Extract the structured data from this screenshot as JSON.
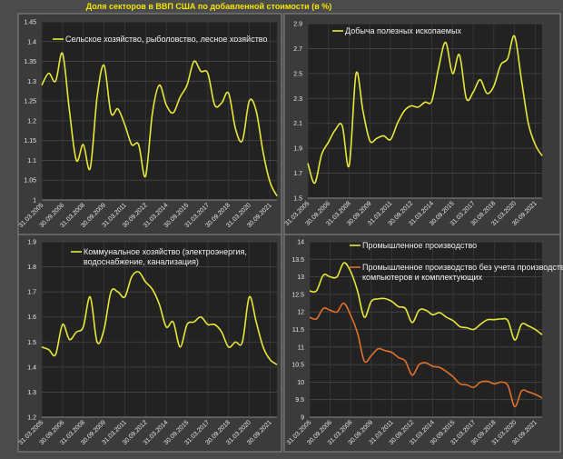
{
  "title": "Доля секторов в ВВП США по добавленной стоимости (в %)",
  "colors": {
    "background": "#4b4b4b",
    "panel": "#3b3b3b",
    "plot": "#222222",
    "grid": "#444444",
    "yellow": "#e8e83a",
    "orange": "#e0702a"
  },
  "chart_data": [
    {
      "type": "line",
      "legend_placement": "top-left",
      "grid": true,
      "ylim": [
        1,
        1.45
      ],
      "yticks": [
        "1",
        "1.05",
        "1.1",
        "1.15",
        "1.2",
        "1.25",
        "1.3",
        "1.35",
        "1.4",
        "1.45"
      ],
      "xtick_labels": [
        "31.03.2005",
        "30.09.2006",
        "31.03.2008",
        "30.09.2009",
        "31.03.2011",
        "30.09.2012",
        "31.03.2014",
        "30.09.2015",
        "31.03.2017",
        "30.09.2018",
        "31.03.2020",
        "30.09.2021"
      ],
      "x": [
        "31.03.2005",
        "30.09.2005",
        "31.03.2006",
        "30.09.2006",
        "31.03.2007",
        "30.09.2007",
        "31.03.2008",
        "30.09.2008",
        "31.03.2009",
        "30.09.2009",
        "31.03.2010",
        "30.09.2010",
        "31.03.2011",
        "30.09.2011",
        "31.03.2012",
        "30.09.2012",
        "31.03.2013",
        "30.09.2013",
        "31.03.2014",
        "30.09.2014",
        "31.03.2015",
        "30.09.2015",
        "31.03.2016",
        "30.09.2016",
        "31.03.2017",
        "30.09.2017",
        "31.03.2018",
        "30.09.2018",
        "31.03.2019",
        "30.09.2019",
        "31.03.2020",
        "30.09.2020",
        "31.03.2021",
        "30.09.2021",
        "31.03.2022"
      ],
      "series": [
        {
          "name": "Сельское хозяйство, рыболовство, лесное хозяйство",
          "color": "#e8e83a",
          "values": [
            1.29,
            1.32,
            1.3,
            1.37,
            1.225,
            1.1,
            1.14,
            1.08,
            1.26,
            1.34,
            1.22,
            1.23,
            1.19,
            1.14,
            1.14,
            1.06,
            1.22,
            1.29,
            1.24,
            1.22,
            1.26,
            1.29,
            1.35,
            1.325,
            1.32,
            1.24,
            1.245,
            1.27,
            1.18,
            1.15,
            1.25,
            1.225,
            1.12,
            1.045,
            1.01
          ]
        }
      ]
    },
    {
      "type": "line",
      "legend_placement": "top-left",
      "grid": true,
      "ylim": [
        1.5,
        2.9
      ],
      "yticks": [
        "1.5",
        "1.7",
        "1.9",
        "2.1",
        "2.3",
        "2.5",
        "2.7",
        "2.9"
      ],
      "xtick_labels": [
        "31.03.2005",
        "30.09.2006",
        "31.03.2008",
        "30.09.2009",
        "31.03.2011",
        "30.09.2012",
        "31.03.2014",
        "30.09.2015",
        "31.03.2017",
        "30.09.2018",
        "31.03.2020",
        "30.09.2021"
      ],
      "x": [
        "31.03.2005",
        "30.09.2005",
        "31.03.2006",
        "30.09.2006",
        "31.03.2007",
        "30.09.2007",
        "31.03.2008",
        "30.09.2008",
        "31.03.2009",
        "30.09.2009",
        "31.03.2010",
        "30.09.2010",
        "31.03.2011",
        "30.09.2011",
        "31.03.2012",
        "30.09.2012",
        "31.03.2013",
        "30.09.2013",
        "31.03.2014",
        "30.09.2014",
        "31.03.2015",
        "30.09.2015",
        "31.03.2016",
        "30.09.2016",
        "31.03.2017",
        "30.09.2017",
        "31.03.2018",
        "30.09.2018",
        "31.03.2019",
        "30.09.2019",
        "31.03.2020",
        "30.09.2020",
        "31.03.2021",
        "30.09.2021",
        "31.03.2022"
      ],
      "series": [
        {
          "name": "Добыча полезных ископаемых",
          "color": "#e8e83a",
          "values": [
            1.78,
            1.62,
            1.85,
            1.95,
            2.05,
            2.08,
            1.76,
            2.5,
            2.2,
            1.96,
            1.98,
            2.0,
            1.97,
            2.1,
            2.2,
            2.24,
            2.23,
            2.27,
            2.28,
            2.55,
            2.75,
            2.5,
            2.65,
            2.3,
            2.35,
            2.45,
            2.34,
            2.4,
            2.57,
            2.62,
            2.8,
            2.45,
            2.1,
            1.93,
            1.84
          ]
        }
      ]
    },
    {
      "type": "line",
      "legend_placement": "top-left",
      "grid": true,
      "ylim": [
        1.2,
        1.9
      ],
      "yticks": [
        "1.2",
        "1.3",
        "1.4",
        "1.5",
        "1.6",
        "1.7",
        "1.8",
        "1.9"
      ],
      "xtick_labels": [
        "31.03.2005",
        "30.09.2006",
        "31.03.2008",
        "30.09.2009",
        "31.03.2011",
        "30.09.2012",
        "31.03.2014",
        "30.09.2015",
        "31.03.2017",
        "30.09.2018",
        "31.03.2020",
        "30.09.2021"
      ],
      "x": [
        "31.03.2005",
        "30.09.2005",
        "31.03.2006",
        "30.09.2006",
        "31.03.2007",
        "30.09.2007",
        "31.03.2008",
        "30.09.2008",
        "31.03.2009",
        "30.09.2009",
        "31.03.2010",
        "30.09.2010",
        "31.03.2011",
        "30.09.2011",
        "31.03.2012",
        "30.09.2012",
        "31.03.2013",
        "30.09.2013",
        "31.03.2014",
        "30.09.2014",
        "31.03.2015",
        "30.09.2015",
        "31.03.2016",
        "30.09.2016",
        "31.03.2017",
        "30.09.2017",
        "31.03.2018",
        "30.09.2018",
        "31.03.2019",
        "30.09.2019",
        "31.03.2020",
        "30.09.2020",
        "31.03.2021",
        "30.09.2021",
        "31.03.2022"
      ],
      "series": [
        {
          "name": "Коммунальное хозяйство (электроэнергия, водоснабжение, канализация)",
          "name_lines": [
            "Коммунальное хозяйство (электроэнергия,",
            "водоснабжение, канализация)"
          ],
          "color": "#e8e83a",
          "values": [
            1.48,
            1.47,
            1.45,
            1.57,
            1.51,
            1.54,
            1.56,
            1.68,
            1.5,
            1.55,
            1.7,
            1.7,
            1.68,
            1.76,
            1.78,
            1.74,
            1.71,
            1.65,
            1.56,
            1.58,
            1.48,
            1.57,
            1.58,
            1.6,
            1.57,
            1.57,
            1.54,
            1.48,
            1.5,
            1.5,
            1.68,
            1.58,
            1.48,
            1.43,
            1.41
          ]
        }
      ]
    },
    {
      "type": "line",
      "legend_placement": "top",
      "grid": true,
      "ylim": [
        9,
        14
      ],
      "yticks": [
        "9",
        "9.5",
        "10",
        "10.5",
        "11",
        "11.5",
        "12",
        "12.5",
        "13",
        "13.5",
        "14"
      ],
      "xtick_labels": [
        "31.03.2005",
        "30.09.2006",
        "31.03.2008",
        "30.09.2009",
        "31.03.2011",
        "30.09.2012",
        "31.03.2014",
        "30.09.2015",
        "31.03.2017",
        "30.09.2018",
        "31.03.2020",
        "30.09.2021"
      ],
      "x": [
        "31.03.2005",
        "30.09.2005",
        "31.03.2006",
        "30.09.2006",
        "31.03.2007",
        "30.09.2007",
        "31.03.2008",
        "30.09.2008",
        "31.03.2009",
        "30.09.2009",
        "31.03.2010",
        "30.09.2010",
        "31.03.2011",
        "30.09.2011",
        "31.03.2012",
        "30.09.2012",
        "31.03.2013",
        "30.09.2013",
        "31.03.2014",
        "30.09.2014",
        "31.03.2015",
        "30.09.2015",
        "31.03.2016",
        "30.09.2016",
        "31.03.2017",
        "30.09.2017",
        "31.03.2018",
        "30.09.2018",
        "31.03.2019",
        "30.09.2019",
        "31.03.2020",
        "30.09.2020",
        "31.03.2021",
        "30.09.2021",
        "31.03.2022"
      ],
      "series": [
        {
          "name": "Промышленное производство",
          "name_lines": [
            "Промышленное производство"
          ],
          "color": "#e8e83a",
          "values": [
            12.6,
            12.6,
            13.05,
            13.0,
            13.0,
            13.4,
            13.15,
            12.6,
            11.85,
            12.3,
            12.37,
            12.38,
            12.3,
            12.15,
            12.1,
            11.7,
            12.05,
            12.05,
            11.92,
            11.98,
            11.85,
            11.75,
            11.58,
            11.55,
            11.5,
            11.65,
            11.78,
            11.78,
            11.8,
            11.75,
            11.2,
            11.65,
            11.6,
            11.5,
            11.35
          ]
        },
        {
          "name": "Промышленное производство без учета производства компьютеров и комплектующих",
          "name_lines": [
            "Промышленное производство без учета производства",
            "компьютеров и комплектующих"
          ],
          "color": "#e0702a",
          "values": [
            11.85,
            11.8,
            12.1,
            12.05,
            12.0,
            12.25,
            11.9,
            11.4,
            10.6,
            10.75,
            10.95,
            10.9,
            10.85,
            10.7,
            10.6,
            10.2,
            10.5,
            10.55,
            10.45,
            10.42,
            10.3,
            10.15,
            9.95,
            9.92,
            9.85,
            10.0,
            10.02,
            9.95,
            10.0,
            9.9,
            9.3,
            9.75,
            9.72,
            9.65,
            9.55
          ]
        }
      ]
    }
  ]
}
